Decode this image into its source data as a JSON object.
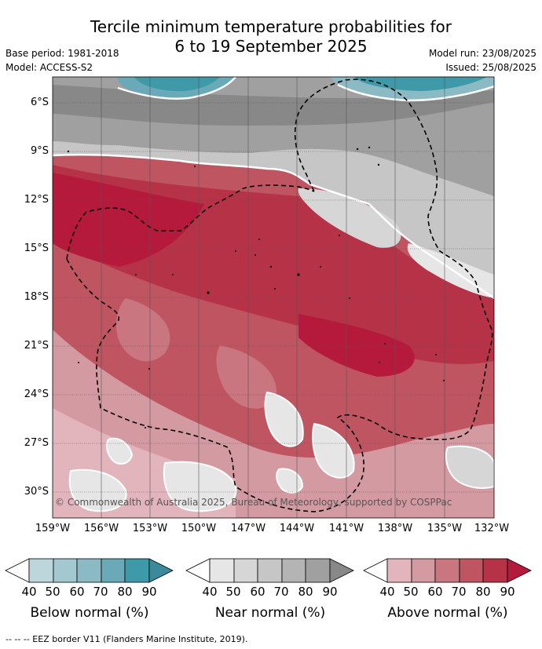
{
  "title_line1": "Tercile minimum temperature probabilities for",
  "title_line2": "6 to 19 September 2025",
  "base_period": "Base period: 1981-2018",
  "model": "Model: ACCESS-S2",
  "model_run": "Model run: 23/08/2025",
  "issued": "Issued: 25/08/2025",
  "lat_labels": [
    "6°S",
    "9°S",
    "12°S",
    "15°S",
    "18°S",
    "21°S",
    "24°S",
    "27°S",
    "30°S"
  ],
  "lon_labels": [
    "159°W",
    "156°W",
    "153°W",
    "150°W",
    "147°W",
    "144°W",
    "141°W",
    "138°W",
    "135°W",
    "132°W"
  ],
  "credit": "© Commonwealth of Australia 2025, Bureau of Meteorology, supported by COSPPac",
  "colorbars": [
    {
      "name": "Below normal (%)",
      "ticks": [
        "40",
        "50",
        "60",
        "70",
        "80",
        "90"
      ],
      "colors": [
        "#ffffff",
        "#bcd6dc",
        "#a4c8d0",
        "#8bbac5",
        "#6aaab8",
        "#3e9aa8",
        "#3a8a9c"
      ]
    },
    {
      "name": "Near normal (%)",
      "ticks": [
        "40",
        "50",
        "60",
        "70",
        "80",
        "90"
      ],
      "colors": [
        "#ffffff",
        "#e6e6e6",
        "#d6d6d6",
        "#c6c6c6",
        "#b4b4b4",
        "#a0a0a0",
        "#888888"
      ]
    },
    {
      "name": "Above normal (%)",
      "ticks": [
        "40",
        "50",
        "60",
        "70",
        "80",
        "90"
      ],
      "colors": [
        "#ffffff",
        "#e2b4bb",
        "#d49aa2",
        "#c97680",
        "#c05562",
        "#b63247",
        "#b51a3c"
      ]
    }
  ],
  "footnote": "--  --  -- EEZ border V11 (Flanders Marine Institute, 2019)."
}
